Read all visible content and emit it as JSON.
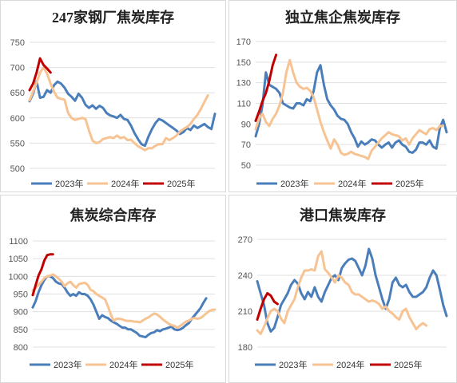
{
  "colors": {
    "2023": "#4a7ebb",
    "2024": "#f7c393",
    "2025": "#c00000"
  },
  "chart_data": [
    {
      "type": "line",
      "title": "247家钢厂焦炭库存",
      "ylim": [
        500,
        750
      ],
      "yticks": [
        "750",
        "700",
        "650",
        "600",
        "550",
        "500"
      ],
      "grid": true,
      "legend": "bottom",
      "series": [
        {
          "name": "2023年",
          "key": "2023",
          "values": [
            633,
            648,
            673,
            640,
            642,
            655,
            650,
            665,
            672,
            668,
            660,
            648,
            642,
            634,
            648,
            640,
            626,
            620,
            625,
            618,
            624,
            620,
            610,
            605,
            603,
            600,
            606,
            598,
            596,
            585,
            570,
            558,
            548,
            545,
            563,
            578,
            590,
            598,
            595,
            590,
            585,
            580,
            575,
            568,
            572,
            580,
            576,
            585,
            580,
            584,
            588,
            582,
            578,
            608
          ]
        },
        {
          "name": "2024年",
          "key": "2024",
          "values": [
            635,
            652,
            670,
            690,
            700,
            688,
            668,
            652,
            640,
            638,
            636,
            610,
            600,
            596,
            598,
            600,
            598,
            575,
            555,
            550,
            552,
            558,
            560,
            562,
            560,
            565,
            560,
            562,
            556,
            557,
            550,
            544,
            540,
            536,
            540,
            540,
            545,
            548,
            548,
            560,
            556,
            560,
            565,
            573,
            578,
            582,
            588,
            598,
            606,
            618,
            632,
            645
          ]
        },
        {
          "name": "2025年",
          "key": "2025",
          "values": [
            655,
            668,
            690,
            718,
            705,
            698,
            690
          ]
        }
      ]
    },
    {
      "type": "line",
      "title": "独立焦企焦炭库存",
      "ylim": [
        50,
        170
      ],
      "yticks": [
        "170",
        "150",
        "130",
        "110",
        "90",
        "70",
        "50"
      ],
      "grid": true,
      "legend": "bottom",
      "series": [
        {
          "name": "2023年",
          "key": "2023",
          "values": [
            78,
            90,
            108,
            140,
            128,
            126,
            124,
            120,
            110,
            108,
            106,
            105,
            110,
            110,
            108,
            114,
            112,
            122,
            140,
            147,
            128,
            114,
            108,
            104,
            98,
            95,
            94,
            90,
            82,
            76,
            68,
            73,
            70,
            72,
            75,
            74,
            70,
            67,
            70,
            72,
            67,
            72,
            74,
            70,
            68,
            63,
            62,
            65,
            72,
            72,
            70,
            74,
            68,
            66,
            86,
            94,
            82
          ]
        },
        {
          "name": "2024年",
          "key": "2024",
          "values": [
            85,
            95,
            100,
            92,
            88,
            95,
            100,
            108,
            120,
            140,
            152,
            140,
            130,
            126,
            124,
            125,
            122,
            116,
            104,
            92,
            82,
            74,
            66,
            75,
            70,
            62,
            60,
            61,
            63,
            61,
            60,
            59,
            58,
            56,
            64,
            68,
            72,
            76,
            79,
            82,
            80,
            79,
            78,
            74,
            76,
            70,
            76,
            80,
            84,
            82,
            80,
            85,
            86,
            84,
            88,
            88
          ]
        },
        {
          "name": "2025年",
          "key": "2025",
          "values": [
            93,
            102,
            112,
            120,
            132,
            147,
            157
          ]
        }
      ]
    },
    {
      "type": "line",
      "title": "焦炭综合库存",
      "ylim": [
        800,
        1100
      ],
      "yticks": [
        "1100",
        "1050",
        "1000",
        "950",
        "900",
        "850",
        "800"
      ],
      "grid": true,
      "legend": "bottom",
      "series": [
        {
          "name": "2023年",
          "key": "2023",
          "values": [
            912,
            930,
            955,
            975,
            990,
            1000,
            1000,
            995,
            985,
            980,
            978,
            968,
            955,
            945,
            950,
            945,
            955,
            950,
            950,
            945,
            935,
            920,
            900,
            880,
            890,
            885,
            882,
            875,
            870,
            866,
            860,
            855,
            855,
            850,
            850,
            845,
            840,
            832,
            830,
            828,
            835,
            840,
            842,
            848,
            845,
            850,
            852,
            855,
            858,
            850,
            848,
            850,
            855,
            862,
            868,
            880,
            890,
            900,
            910,
            925,
            938
          ]
        },
        {
          "name": "2024年",
          "key": "2024",
          "values": [
            960,
            968,
            975,
            985,
            995,
            1000,
            1002,
            1005,
            1000,
            993,
            985,
            972,
            980,
            985,
            975,
            968,
            978,
            980,
            982,
            976,
            962,
            958,
            950,
            945,
            940,
            935,
            915,
            892,
            875,
            880,
            880,
            878,
            875,
            874,
            874,
            872,
            872,
            870,
            875,
            880,
            884,
            890,
            895,
            892,
            886,
            878,
            872,
            866,
            862,
            860,
            855,
            860,
            866,
            872,
            875,
            880,
            882,
            880,
            882,
            888,
            895,
            902,
            905,
            906
          ]
        },
        {
          "name": "2025年",
          "key": "2025",
          "values": [
            947,
            975,
            1002,
            1020,
            1045,
            1060,
            1062,
            1062
          ]
        }
      ]
    },
    {
      "type": "line",
      "title": "港口焦炭库存",
      "ylim": [
        180,
        270
      ],
      "yticks": [
        "270",
        "240",
        "210",
        "180"
      ],
      "grid": true,
      "legend": "bottom",
      "series": [
        {
          "name": "2023年",
          "key": "2023",
          "values": [
            235,
            225,
            215,
            200,
            193,
            196,
            205,
            215,
            220,
            225,
            232,
            236,
            233,
            225,
            220,
            226,
            222,
            230,
            222,
            218,
            226,
            232,
            238,
            240,
            236,
            246,
            250,
            253,
            254,
            252,
            246,
            240,
            248,
            262,
            254,
            240,
            230,
            220,
            212,
            220,
            234,
            238,
            232,
            230,
            232,
            226,
            222,
            222,
            224,
            226,
            230,
            238,
            244,
            240,
            228,
            215,
            206
          ]
        },
        {
          "name": "2024年",
          "key": "2024",
          "values": [
            194,
            191,
            197,
            204,
            210,
            212,
            210,
            204,
            200,
            210,
            215,
            220,
            230,
            238,
            244,
            244,
            245,
            244,
            256,
            260,
            245,
            242,
            238,
            234,
            240,
            238,
            234,
            232,
            226,
            224,
            224,
            222,
            220,
            218,
            219,
            218,
            216,
            212,
            214,
            210,
            208,
            205,
            203,
            210,
            212,
            205,
            200,
            195,
            198,
            200,
            198
          ]
        },
        {
          "name": "2025年",
          "key": "2025",
          "values": [
            203,
            212,
            220,
            225,
            223,
            218,
            216
          ]
        }
      ]
    }
  ]
}
